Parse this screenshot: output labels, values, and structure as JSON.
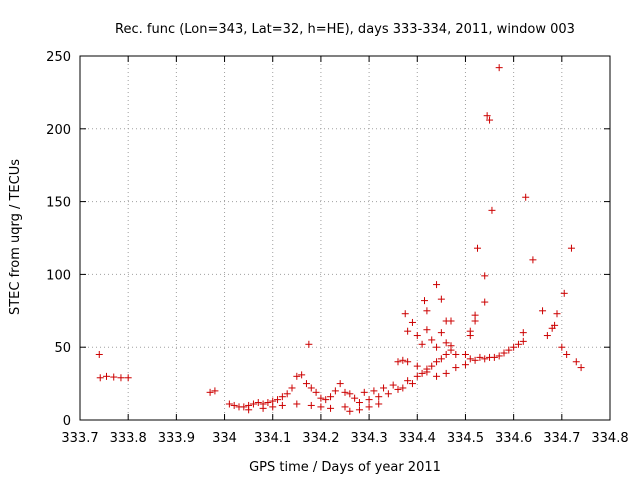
{
  "chart_data": {
    "type": "scatter",
    "title": "Rec. func (Lon=343, Lat=32, h=HE), days 333-334, 2011, window 003",
    "xlabel": "GPS time / Days of year 2011",
    "ylabel": "STEC from uqrg / TECUs",
    "xlim": [
      333.7,
      334.8
    ],
    "ylim": [
      0,
      250
    ],
    "xticks": [
      333.7,
      333.8,
      333.9,
      334.0,
      334.1,
      334.2,
      334.3,
      334.4,
      334.5,
      334.6,
      334.7,
      334.8
    ],
    "xtick_labels": [
      "333.7",
      "333.8",
      "333.9",
      "334",
      "334.1",
      "334.2",
      "334.3",
      "334.4",
      "334.5",
      "334.6",
      "334.7",
      "334.8"
    ],
    "yticks": [
      0,
      50,
      100,
      150,
      200,
      250
    ],
    "ytick_labels": [
      "0",
      "50",
      "100",
      "150",
      "200",
      "250"
    ],
    "grid": true,
    "marker": "+",
    "color": "#cc0000",
    "points": [
      [
        333.74,
        45
      ],
      [
        333.742,
        29
      ],
      [
        333.755,
        30
      ],
      [
        333.77,
        29.5
      ],
      [
        333.785,
        29
      ],
      [
        333.8,
        29
      ],
      [
        333.97,
        19
      ],
      [
        333.98,
        20
      ],
      [
        334.01,
        11
      ],
      [
        334.02,
        10
      ],
      [
        334.03,
        9
      ],
      [
        334.04,
        9
      ],
      [
        334.05,
        10
      ],
      [
        334.06,
        11
      ],
      [
        334.07,
        12
      ],
      [
        334.08,
        11
      ],
      [
        334.09,
        12
      ],
      [
        334.1,
        13
      ],
      [
        334.11,
        14
      ],
      [
        334.12,
        16
      ],
      [
        334.13,
        18
      ],
      [
        334.14,
        22
      ],
      [
        334.15,
        30
      ],
      [
        334.16,
        31
      ],
      [
        334.17,
        25
      ],
      [
        334.175,
        52
      ],
      [
        334.18,
        22
      ],
      [
        334.19,
        19
      ],
      [
        334.2,
        15
      ],
      [
        334.21,
        14
      ],
      [
        334.22,
        16
      ],
      [
        334.23,
        20
      ],
      [
        334.24,
        25
      ],
      [
        334.25,
        19
      ],
      [
        334.26,
        18
      ],
      [
        334.27,
        15
      ],
      [
        334.05,
        7
      ],
      [
        334.08,
        8
      ],
      [
        334.1,
        9
      ],
      [
        334.12,
        10
      ],
      [
        334.15,
        11
      ],
      [
        334.18,
        10
      ],
      [
        334.2,
        9
      ],
      [
        334.22,
        8
      ],
      [
        334.25,
        9
      ],
      [
        334.28,
        12
      ],
      [
        334.3,
        14
      ],
      [
        334.32,
        16
      ],
      [
        334.34,
        18
      ],
      [
        334.36,
        21
      ],
      [
        334.26,
        6
      ],
      [
        334.28,
        7
      ],
      [
        334.3,
        9
      ],
      [
        334.32,
        11
      ],
      [
        334.29,
        19
      ],
      [
        334.31,
        20
      ],
      [
        334.33,
        22
      ],
      [
        334.35,
        24
      ],
      [
        334.37,
        22
      ],
      [
        334.38,
        27
      ],
      [
        334.39,
        25
      ],
      [
        334.4,
        30
      ],
      [
        334.41,
        32
      ],
      [
        334.42,
        35
      ],
      [
        334.43,
        37
      ],
      [
        334.44,
        40
      ],
      [
        334.45,
        42
      ],
      [
        334.46,
        45
      ],
      [
        334.47,
        48
      ],
      [
        334.36,
        40
      ],
      [
        334.37,
        41
      ],
      [
        334.38,
        61
      ],
      [
        334.39,
        67
      ],
      [
        334.4,
        58
      ],
      [
        334.41,
        52
      ],
      [
        334.42,
        62
      ],
      [
        334.43,
        55
      ],
      [
        334.44,
        50
      ],
      [
        334.45,
        60
      ],
      [
        334.46,
        53
      ],
      [
        334.47,
        51
      ],
      [
        334.48,
        45
      ],
      [
        334.375,
        73
      ],
      [
        334.415,
        82
      ],
      [
        334.42,
        75
      ],
      [
        334.44,
        93
      ],
      [
        334.45,
        83
      ],
      [
        334.46,
        68
      ],
      [
        334.47,
        68
      ],
      [
        334.38,
        40
      ],
      [
        334.4,
        37
      ],
      [
        334.42,
        33
      ],
      [
        334.44,
        30
      ],
      [
        334.46,
        32
      ],
      [
        334.48,
        36
      ],
      [
        334.5,
        38
      ],
      [
        334.51,
        61
      ],
      [
        334.51,
        58
      ],
      [
        334.52,
        72
      ],
      [
        334.52,
        68
      ],
      [
        334.525,
        118
      ],
      [
        334.54,
        99
      ],
      [
        334.54,
        81
      ],
      [
        334.545,
        209
      ],
      [
        334.55,
        206
      ],
      [
        334.555,
        144
      ],
      [
        334.57,
        242
      ],
      [
        334.5,
        45
      ],
      [
        334.51,
        42
      ],
      [
        334.52,
        41
      ],
      [
        334.53,
        43
      ],
      [
        334.54,
        42
      ],
      [
        334.55,
        43
      ],
      [
        334.56,
        43
      ],
      [
        334.57,
        44
      ],
      [
        334.58,
        46
      ],
      [
        334.59,
        48
      ],
      [
        334.6,
        50
      ],
      [
        334.61,
        52
      ],
      [
        334.62,
        54
      ],
      [
        334.62,
        60
      ],
      [
        334.625,
        153
      ],
      [
        334.64,
        110
      ],
      [
        334.66,
        75
      ],
      [
        334.67,
        58
      ],
      [
        334.68,
        63
      ],
      [
        334.685,
        65
      ],
      [
        334.69,
        73
      ],
      [
        334.7,
        50
      ],
      [
        334.705,
        87
      ],
      [
        334.71,
        45
      ],
      [
        334.72,
        118
      ],
      [
        334.73,
        40
      ],
      [
        334.74,
        36
      ]
    ]
  }
}
